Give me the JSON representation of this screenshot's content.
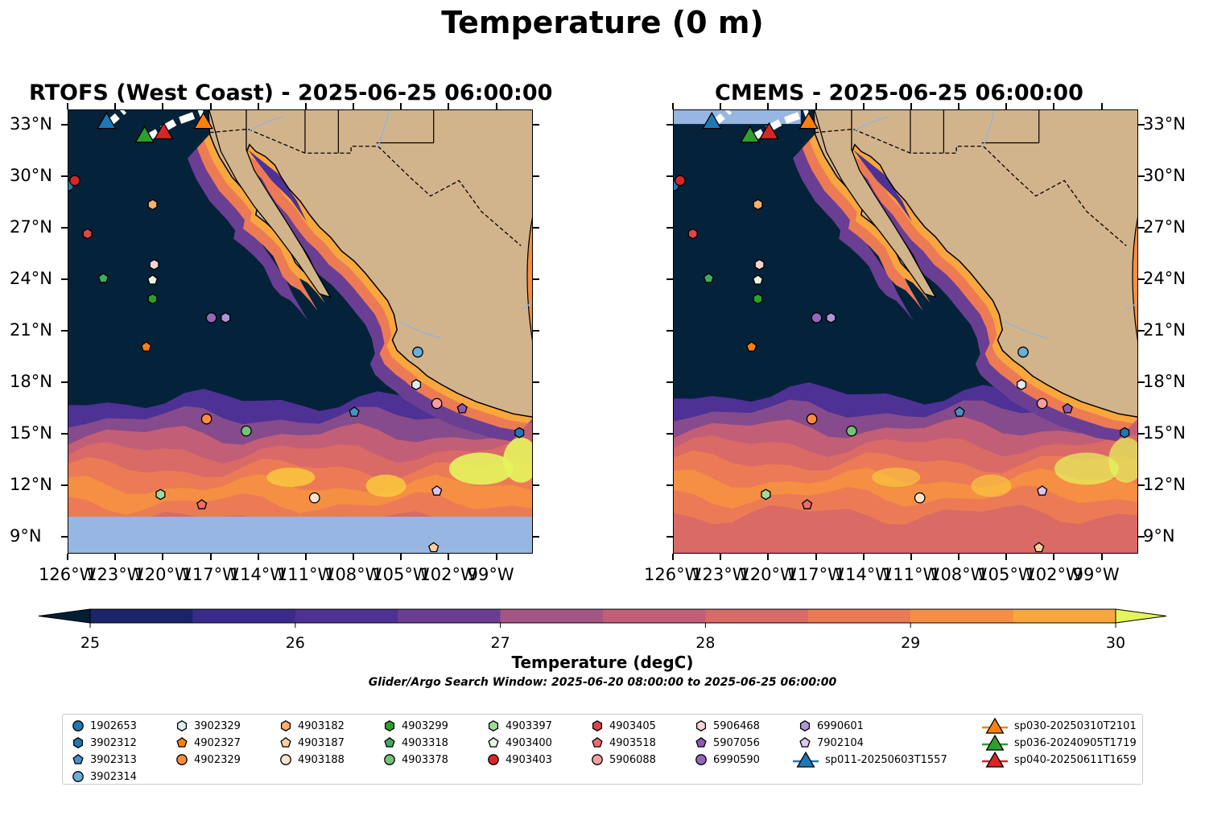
{
  "title": "Temperature (0 m)",
  "panels": [
    {
      "title": "RTOFS (West Coast) - 2025-06-25 06:00:00"
    },
    {
      "title": "CMEMS - 2025-06-25 06:00:00"
    }
  ],
  "lat_ticks": [
    "33°N",
    "30°N",
    "27°N",
    "24°N",
    "21°N",
    "18°N",
    "15°N",
    "12°N",
    "9°N"
  ],
  "lon_ticks": [
    "126°W",
    "123°W",
    "120°W",
    "117°W",
    "114°W",
    "111°W",
    "108°W",
    "105°W",
    "102°W",
    "99°W"
  ],
  "colorbar": {
    "label": "Temperature (degC)",
    "ticks": [
      "25",
      "26",
      "27",
      "28",
      "29",
      "30"
    ],
    "colors": [
      "#041e33",
      "#19246b",
      "#3a2a8b",
      "#4d3195",
      "#6a3f93",
      "#864b8c",
      "#a35583",
      "#c25f76",
      "#d96a66",
      "#ec7b55",
      "#f58f44",
      "#f8a73c",
      "#f9c43e",
      "#e4f55c"
    ]
  },
  "search_window": "Glider/Argo Search Window: 2025-06-20 08:00:00 to 2025-06-25 06:00:00",
  "legend": [
    {
      "label": "1902653",
      "shape": "circle",
      "color": "#1f77b4"
    },
    {
      "label": "3902312",
      "shape": "hexagon",
      "color": "#1f77b4"
    },
    {
      "label": "3902313",
      "shape": "pentagon",
      "color": "#4a90c8"
    },
    {
      "label": "3902314",
      "shape": "circle",
      "color": "#6baed6"
    },
    {
      "label": "3902329",
      "shape": "hexagon",
      "color": "#deebf7"
    },
    {
      "label": "4902327",
      "shape": "pentagon",
      "color": "#ff7f0e"
    },
    {
      "label": "4902329",
      "shape": "circle",
      "color": "#fd8d3c"
    },
    {
      "label": "4903182",
      "shape": "hexagon",
      "color": "#fdae6b"
    },
    {
      "label": "4903187",
      "shape": "pentagon",
      "color": "#fdd0a2"
    },
    {
      "label": "4903188",
      "shape": "circle",
      "color": "#fee6ce"
    },
    {
      "label": "4903299",
      "shape": "hexagon",
      "color": "#2ca02c"
    },
    {
      "label": "4903318",
      "shape": "pentagon",
      "color": "#41ab5d"
    },
    {
      "label": "4903378",
      "shape": "circle",
      "color": "#74c476"
    },
    {
      "label": "4903397",
      "shape": "hexagon",
      "color": "#a1d99b"
    },
    {
      "label": "4903400",
      "shape": "pentagon",
      "color": "#e5f5e0"
    },
    {
      "label": "4903403",
      "shape": "circle",
      "color": "#d62728"
    },
    {
      "label": "4903405",
      "shape": "hexagon",
      "color": "#e04548"
    },
    {
      "label": "4903518",
      "shape": "pentagon",
      "color": "#ef6b6c"
    },
    {
      "label": "5906088",
      "shape": "circle",
      "color": "#f4a0a0"
    },
    {
      "label": "5906468",
      "shape": "hexagon",
      "color": "#fcd2d2"
    },
    {
      "label": "5907056",
      "shape": "pentagon",
      "color": "#8c5ab4"
    },
    {
      "label": "6990590",
      "shape": "circle",
      "color": "#9467bd"
    },
    {
      "label": "6990601",
      "shape": "hexagon",
      "color": "#b294d8"
    },
    {
      "label": "7902104",
      "shape": "pentagon",
      "color": "#dcc6f0"
    },
    {
      "label": "sp011-20250603T1557",
      "shape": "triangle",
      "color": "#1f77b4"
    },
    {
      "label": "sp030-20250310T2101",
      "shape": "triangle",
      "color": "#ff7f0e"
    },
    {
      "label": "sp036-20240905T1719",
      "shape": "triangle",
      "color": "#2ca02c"
    },
    {
      "label": "sp040-20250611T1659",
      "shape": "triangle",
      "color": "#d62728"
    }
  ],
  "map_colors": {
    "land": "#d2b48c",
    "ocean_cold": "#04233a",
    "nodata": "#98b6e2",
    "river": "#99b3d1"
  },
  "markers": [
    {
      "label": "1902653",
      "lon": -126.0,
      "lat": 29.5
    },
    {
      "label": "4903403",
      "lon": -125.6,
      "lat": 29.8
    },
    {
      "label": "4903405",
      "lon": -124.8,
      "lat": 26.7
    },
    {
      "label": "4903318",
      "lon": -123.8,
      "lat": 24.1
    },
    {
      "label": "4903182",
      "lon": -120.7,
      "lat": 28.4
    },
    {
      "label": "5906468",
      "lon": -120.6,
      "lat": 24.9
    },
    {
      "label": "4903400",
      "lon": -120.7,
      "lat": 24.0
    },
    {
      "label": "4903299",
      "lon": -120.7,
      "lat": 22.9
    },
    {
      "label": "4902327",
      "lon": -121.1,
      "lat": 20.1
    },
    {
      "label": "6990590",
      "lon": -117.0,
      "lat": 21.8
    },
    {
      "label": "6990601",
      "lon": -116.1,
      "lat": 21.8
    },
    {
      "label": "3902314",
      "lon": -104.0,
      "lat": 19.8
    },
    {
      "label": "3902329",
      "lon": -104.1,
      "lat": 17.9
    },
    {
      "label": "4902329",
      "lon": -117.3,
      "lat": 15.9
    },
    {
      "label": "4903378",
      "lon": -114.8,
      "lat": 15.2
    },
    {
      "label": "3902313",
      "lon": -108.0,
      "lat": 16.3
    },
    {
      "label": "5906088",
      "lon": -102.8,
      "lat": 16.8
    },
    {
      "label": "5907056",
      "lon": -101.2,
      "lat": 16.5
    },
    {
      "label": "4903397",
      "lon": -120.2,
      "lat": 11.5
    },
    {
      "label": "4903518",
      "lon": -117.6,
      "lat": 10.9
    },
    {
      "label": "4903188",
      "lon": -110.5,
      "lat": 11.3
    },
    {
      "label": "7902104",
      "lon": -102.8,
      "lat": 11.7
    },
    {
      "label": "4903187",
      "lon": -103.0,
      "lat": 8.4
    },
    {
      "label": "3902312",
      "lon": -97.6,
      "lat": 15.1
    }
  ],
  "gliders": [
    {
      "label": "sp011-20250603T1557",
      "lon": -123.6,
      "lat": 33.0
    },
    {
      "label": "sp036-20240905T1719",
      "lon": -121.2,
      "lat": 32.2
    },
    {
      "label": "sp040-20250611T1659",
      "lon": -120.0,
      "lat": 32.4
    },
    {
      "label": "sp030-20250310T2101",
      "lon": -117.5,
      "lat": 33.0
    }
  ]
}
